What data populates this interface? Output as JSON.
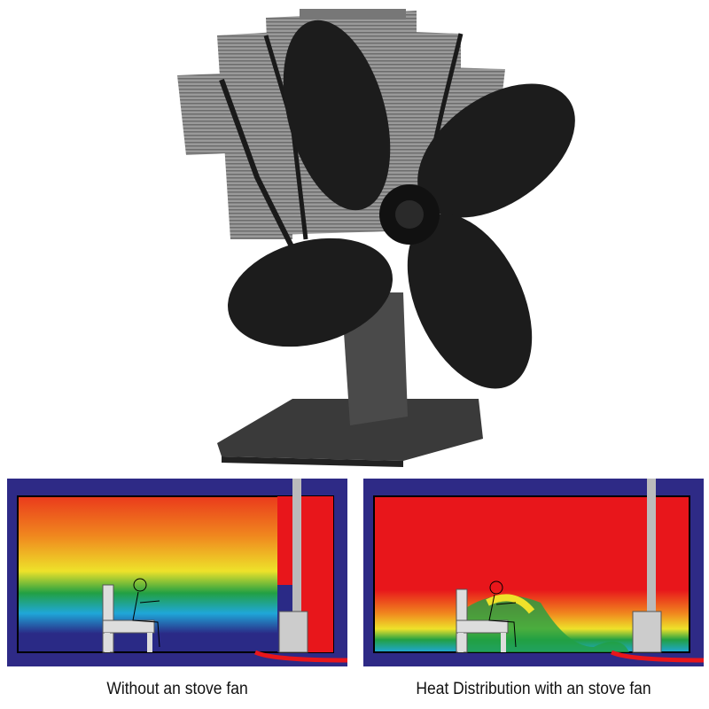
{
  "captions": {
    "without_fan": "Without an stove fan",
    "with_fan": "Heat Distribution with an stove fan"
  },
  "colors": {
    "frame": "#2e2a86",
    "hot": "#e8161b",
    "warm": "#f07a1e",
    "mild": "#eee22a",
    "cool": "#22a043",
    "cold": "#1fa7d8",
    "coldest": "#2a2a86",
    "fan_body": "#1a1a1a",
    "fins": "#8a8a8a"
  },
  "icons": {
    "product": "stove-fan-icon",
    "person": "seated-person-icon",
    "stove": "wood-stove-icon"
  }
}
